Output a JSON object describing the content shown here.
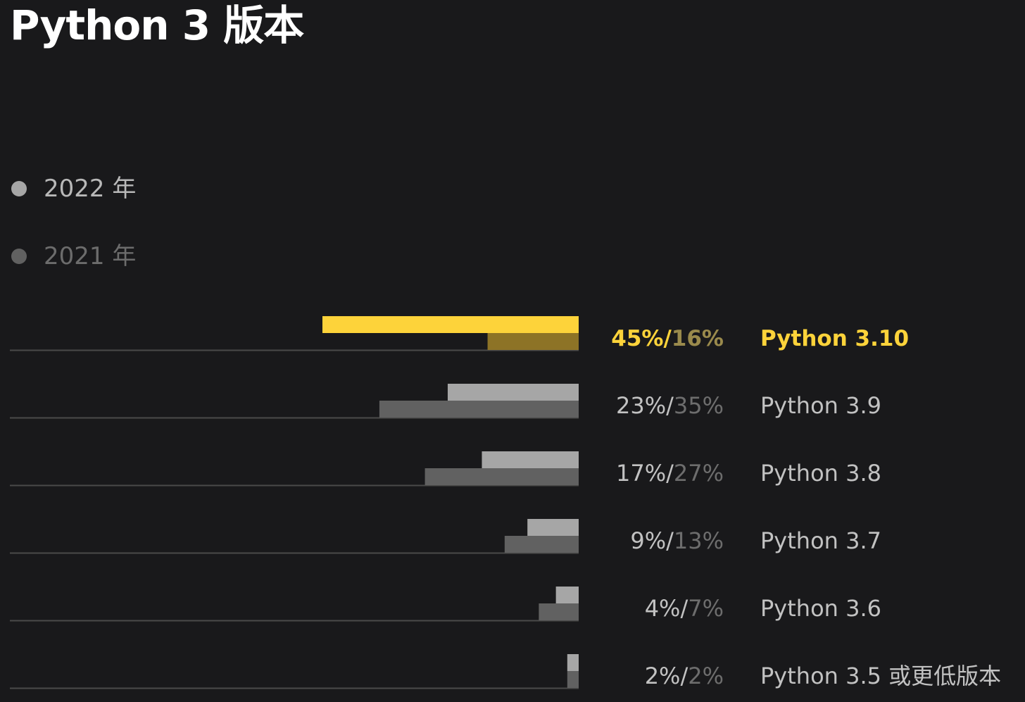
{
  "title": "Python 3 版本",
  "legend": [
    {
      "label": "2022 年",
      "color": "#a6a6a6",
      "text_color": "#b8b8b8"
    },
    {
      "label": "2021 年",
      "color": "#616161",
      "text_color": "#6c6c6c"
    }
  ],
  "colors": {
    "highlight": "#fdd33a",
    "highlight_prev": "#8d7326",
    "highlight_prev_text": "#9a8a4c",
    "bar_2022": "#a6a6a6",
    "bar_2021": "#616161",
    "label_2022": "#c2c2c2",
    "label_2021": "#6d6d6d",
    "category_text": "#c2c2c2",
    "baseline": "#4a4a4a"
  },
  "chart_data": {
    "type": "bar",
    "orientation": "horizontal",
    "categories": [
      "Python 3.10",
      "Python 3.9",
      "Python 3.8",
      "Python 3.7",
      "Python 3.6",
      "Python 3.5 或更低版本"
    ],
    "series": [
      {
        "name": "2022 年",
        "values": [
          45,
          23,
          17,
          9,
          4,
          2
        ]
      },
      {
        "name": "2021 年",
        "values": [
          16,
          35,
          27,
          13,
          7,
          2
        ]
      }
    ],
    "value_labels_2022": [
      "45%",
      "23%",
      "17%",
      "9%",
      "4%",
      "2%"
    ],
    "value_labels_2021": [
      "16%",
      "35%",
      "27%",
      "13%",
      "7%",
      "2%"
    ],
    "separator": "/",
    "highlighted_category": "Python 3.10",
    "xlim": [
      0,
      45
    ],
    "grid": false,
    "legend_position": "top-left"
  }
}
